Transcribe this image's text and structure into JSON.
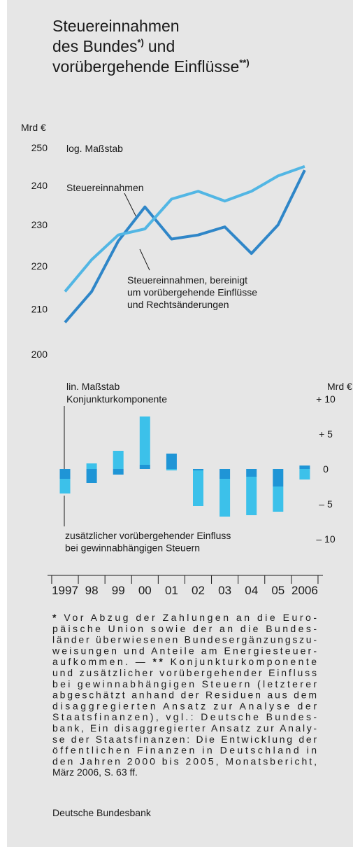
{
  "title_lines": [
    {
      "text": "Steuereinnahmen"
    },
    {
      "text": "des Bundes",
      "note": "*)",
      "after": "und"
    },
    {
      "text": "vorübergehende Einflüsse",
      "note": "**)"
    }
  ],
  "chart_data": [
    {
      "type": "line",
      "ylabel": "Mrd €",
      "scale_note": "log. Maßstab",
      "log": true,
      "ylim": [
        200,
        250
      ],
      "yticks": [
        200,
        210,
        220,
        230,
        240,
        250
      ],
      "series": [
        {
          "label": [
            "Steuereinnahmen"
          ],
          "color": "#2f86c8",
          "values": [
            207,
            214,
            226,
            234.5,
            226.5,
            227.5,
            229.5,
            223,
            230,
            244
          ]
        },
        {
          "label": [
            "Steuereinnahmen, bereinigt",
            "um vorübergehende Einflüsse",
            "und Rechtsänderungen"
          ],
          "color": "#52b6e4",
          "values": [
            214,
            221.5,
            227.5,
            229,
            236.5,
            238.5,
            236,
            238.5,
            242.5,
            245
          ]
        }
      ]
    },
    {
      "type": "bar",
      "stacked": true,
      "ylabel": "Mrd €",
      "scale_note": "lin. Maßstab",
      "categories": [
        "1997",
        "98",
        "99",
        "00",
        "01",
        "02",
        "03",
        "04",
        "05",
        "2006"
      ],
      "ylim": [
        -15,
        12.5
      ],
      "yticks": [
        {
          "value": 10,
          "label": "+ 10"
        },
        {
          "value": 5,
          "label": "+ 5"
        },
        0,
        {
          "value": -5,
          "label": "– 5"
        },
        {
          "value": -10,
          "label": "– 10"
        }
      ],
      "series": [
        {
          "label": [
            "Konjunkturkomponente"
          ],
          "color": "#1f95d6",
          "values": [
            -1.4,
            -2.0,
            -0.8,
            0.6,
            2.2,
            -0.2,
            -1.4,
            -1.1,
            -2.5,
            0.5
          ]
        },
        {
          "label": [
            "zusätzlicher vorübergehender Einfluss",
            "bei gewinnabhängigen Steuern"
          ],
          "color": "#3cc1ea",
          "values": [
            -2.1,
            0.8,
            2.6,
            6.9,
            -0.2,
            -5.1,
            -5.4,
            -5.5,
            -3.6,
            -1.5
          ]
        }
      ]
    }
  ],
  "footnote": [
    {
      "bold": "*",
      "text": " Vor Abzug der Zahlungen an die Euro-"
    },
    {
      "text": "päische Union sowie der an die Bundes-"
    },
    {
      "text": "länder überwiesenen Bundesergänzungszu-"
    },
    {
      "text": "weisungen und Anteile am Energiesteuer-"
    },
    {
      "pre": "aufkommen. — ",
      "bold": "**",
      "text": " Konjunkturkomponente"
    },
    {
      "text": "und zusätzlicher vorübergehender Einfluss"
    },
    {
      "text": "bei gewinnabhängigen Steuern (letzterer"
    },
    {
      "text": "abgeschätzt anhand der Residuen aus dem"
    },
    {
      "text": "disaggregierten Ansatz zur Analyse der"
    },
    {
      "text": "Staatsfinanzen), vgl.: Deutsche Bundes-"
    },
    {
      "text": "bank, Ein disaggregierter Ansatz zur Analy-"
    },
    {
      "text": "se der Staatsfinanzen: Die Entwicklung der"
    },
    {
      "text": "öffentlichen Finanzen in Deutschland in"
    },
    {
      "text": "den Jahren 2000 bis 2005, Monatsbericht,"
    },
    {
      "text": "März 2006, S. 63 ff."
    }
  ],
  "source": "Deutsche Bundesbank"
}
